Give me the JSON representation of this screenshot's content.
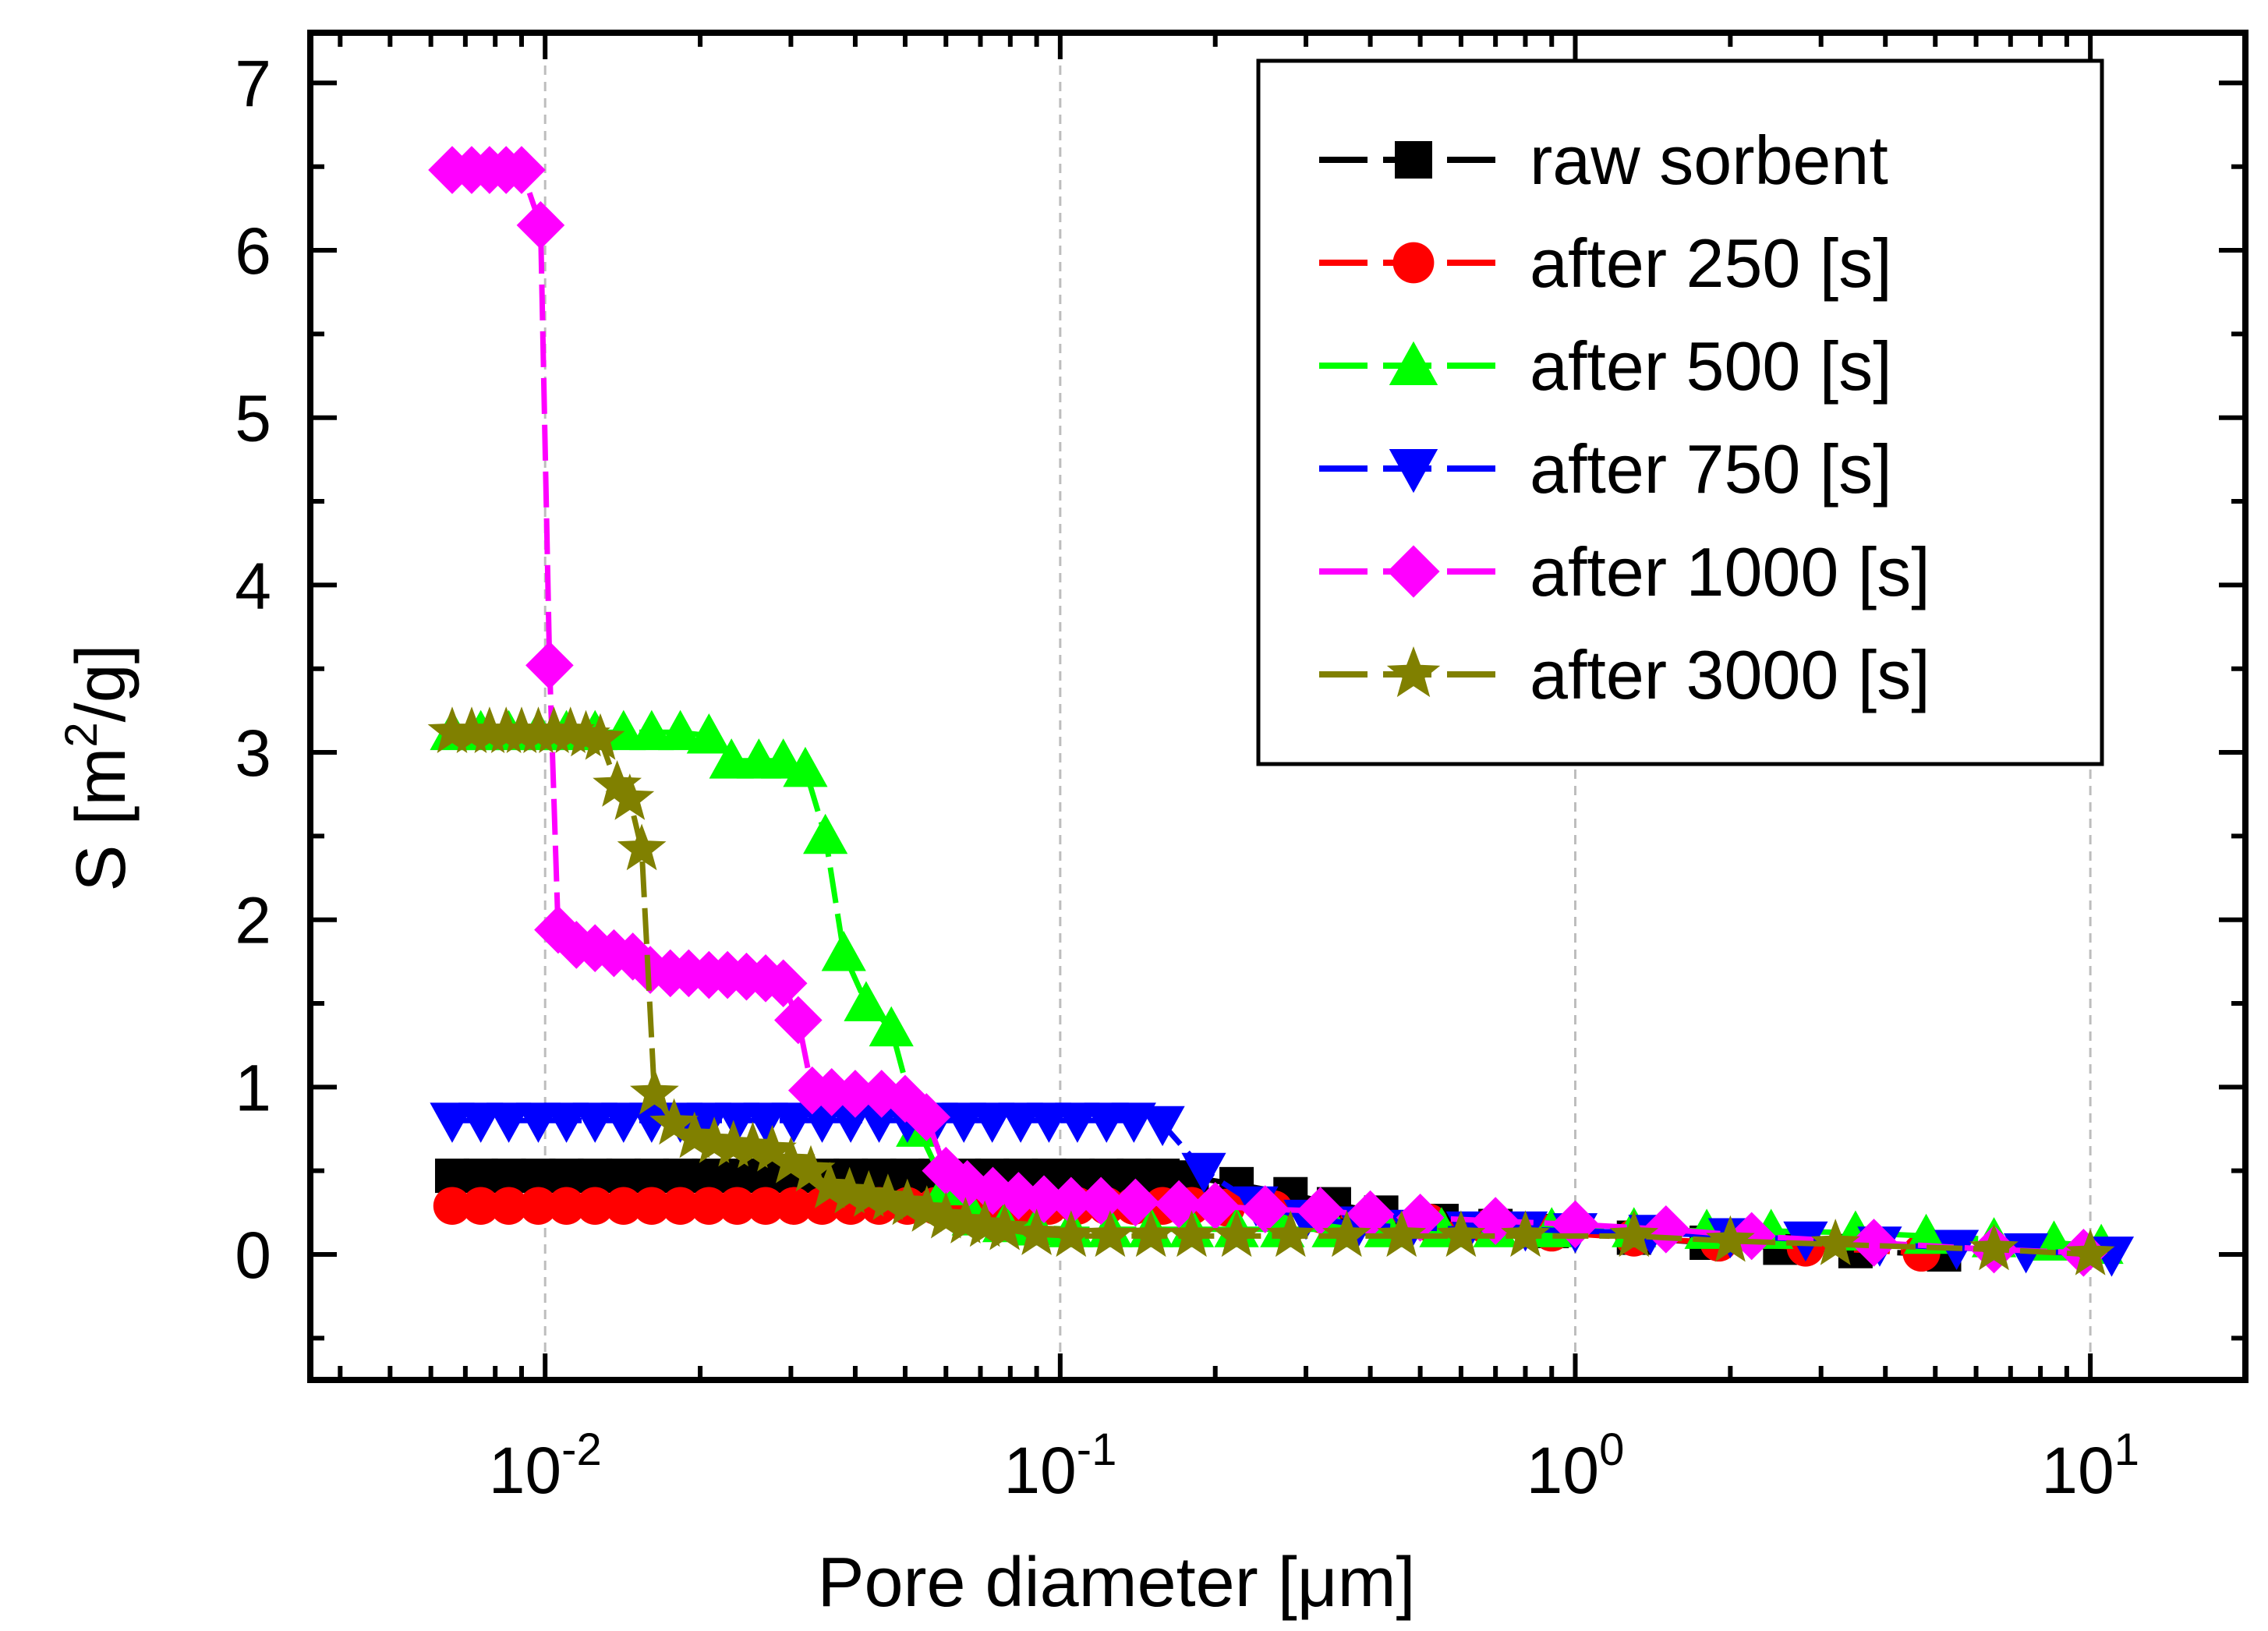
{
  "chart_data": {
    "type": "scatter",
    "title": "",
    "xlabel": "Pore diameter [μm]",
    "ylabel_main": "S [m",
    "ylabel_sup": "2",
    "ylabel_tail": "/g]",
    "x_scale": "log",
    "xlim": [
      0.0035,
      20
    ],
    "ylim": [
      -0.75,
      7.3
    ],
    "x_ticks": [
      {
        "value": 0.01,
        "base": "10",
        "exp": "-2"
      },
      {
        "value": 0.1,
        "base": "10",
        "exp": "-1"
      },
      {
        "value": 1,
        "base": "10",
        "exp": "0"
      },
      {
        "value": 10,
        "base": "10",
        "exp": "1"
      }
    ],
    "y_ticks": [
      {
        "value": 0,
        "label": "0"
      },
      {
        "value": 1,
        "label": "1"
      },
      {
        "value": 2,
        "label": "2"
      },
      {
        "value": 3,
        "label": "3"
      },
      {
        "value": 4,
        "label": "4"
      },
      {
        "value": 5,
        "label": "5"
      },
      {
        "value": 6,
        "label": "6"
      },
      {
        "value": 7,
        "label": "7"
      }
    ],
    "grid": "vertical dashed at x decades",
    "legend_position": "top-right",
    "series": [
      {
        "name": "raw sorbent",
        "color": "#000000",
        "marker": "square",
        "x": [
          0.0066,
          0.0075,
          0.0085,
          0.0097,
          0.011,
          0.0125,
          0.0142,
          0.0161,
          0.0183,
          0.0208,
          0.0236,
          0.0268,
          0.0304,
          0.0345,
          0.0392,
          0.0445,
          0.0505,
          0.0573,
          0.065,
          0.0738,
          0.0838,
          0.0951,
          0.108,
          0.123,
          0.139,
          0.158,
          0.18,
          0.22,
          0.28,
          0.34,
          0.42,
          0.55,
          0.7,
          0.9,
          1.3,
          1.8,
          2.5,
          3.5,
          5.2
        ],
        "y": [
          0.47,
          0.47,
          0.47,
          0.47,
          0.47,
          0.47,
          0.47,
          0.47,
          0.47,
          0.47,
          0.47,
          0.47,
          0.47,
          0.47,
          0.47,
          0.47,
          0.47,
          0.47,
          0.47,
          0.47,
          0.47,
          0.47,
          0.47,
          0.47,
          0.47,
          0.47,
          0.46,
          0.42,
          0.36,
          0.3,
          0.25,
          0.2,
          0.17,
          0.14,
          0.1,
          0.07,
          0.04,
          0.02,
          0.0
        ]
      },
      {
        "name": "after 250 [s]",
        "color": "#ff0000",
        "marker": "circle",
        "x": [
          0.0066,
          0.0075,
          0.0085,
          0.0097,
          0.011,
          0.0125,
          0.0142,
          0.0161,
          0.0183,
          0.0208,
          0.0236,
          0.0268,
          0.0304,
          0.0345,
          0.0392,
          0.0445,
          0.0505,
          0.0573,
          0.065,
          0.0738,
          0.0838,
          0.0951,
          0.108,
          0.123,
          0.139,
          0.158,
          0.18,
          0.21,
          0.26,
          0.32,
          0.4,
          0.52,
          0.68,
          0.9,
          1.3,
          1.9,
          2.8,
          4.7
        ],
        "y": [
          0.29,
          0.29,
          0.29,
          0.29,
          0.29,
          0.29,
          0.29,
          0.29,
          0.29,
          0.29,
          0.29,
          0.29,
          0.29,
          0.29,
          0.29,
          0.29,
          0.29,
          0.29,
          0.29,
          0.29,
          0.29,
          0.29,
          0.29,
          0.29,
          0.29,
          0.29,
          0.29,
          0.28,
          0.27,
          0.24,
          0.22,
          0.19,
          0.16,
          0.13,
          0.1,
          0.07,
          0.04,
          0.01
        ]
      },
      {
        "name": "after 500 [s]",
        "color": "#00ff00",
        "marker": "triangle-up",
        "x": [
          0.0066,
          0.0075,
          0.0085,
          0.0097,
          0.011,
          0.0125,
          0.0142,
          0.0161,
          0.0183,
          0.0208,
          0.023,
          0.026,
          0.029,
          0.032,
          0.035,
          0.038,
          0.042,
          0.047,
          0.053,
          0.06,
          0.068,
          0.078,
          0.09,
          0.105,
          0.125,
          0.15,
          0.18,
          0.22,
          0.27,
          0.34,
          0.43,
          0.55,
          0.7,
          0.9,
          1.3,
          1.8,
          2.4,
          3.5,
          4.8,
          6.5,
          8.5,
          10.5
        ],
        "y": [
          3.12,
          3.12,
          3.12,
          3.12,
          3.12,
          3.12,
          3.12,
          3.12,
          3.12,
          3.1,
          2.95,
          2.95,
          2.95,
          2.9,
          2.5,
          1.8,
          1.5,
          1.35,
          0.75,
          0.4,
          0.22,
          0.18,
          0.16,
          0.15,
          0.15,
          0.15,
          0.15,
          0.15,
          0.15,
          0.15,
          0.15,
          0.15,
          0.15,
          0.15,
          0.15,
          0.14,
          0.14,
          0.13,
          0.11,
          0.09,
          0.07,
          0.05
        ]
      },
      {
        "name": "after 750 [s]",
        "color": "#0000ff",
        "marker": "triangle-down",
        "x": [
          0.0066,
          0.0075,
          0.0085,
          0.0097,
          0.011,
          0.0125,
          0.0142,
          0.0161,
          0.0183,
          0.0208,
          0.0236,
          0.0268,
          0.0304,
          0.0345,
          0.0392,
          0.0445,
          0.0505,
          0.0573,
          0.065,
          0.0738,
          0.0838,
          0.0951,
          0.108,
          0.123,
          0.139,
          0.158,
          0.19,
          0.24,
          0.3,
          0.38,
          0.48,
          0.62,
          0.8,
          1.0,
          1.4,
          2.0,
          2.8,
          3.9,
          5.5,
          7.5,
          11
        ],
        "y": [
          0.8,
          0.8,
          0.8,
          0.8,
          0.8,
          0.8,
          0.8,
          0.8,
          0.8,
          0.8,
          0.8,
          0.8,
          0.8,
          0.8,
          0.8,
          0.8,
          0.8,
          0.8,
          0.8,
          0.8,
          0.8,
          0.8,
          0.8,
          0.8,
          0.8,
          0.78,
          0.5,
          0.3,
          0.22,
          0.18,
          0.16,
          0.15,
          0.15,
          0.14,
          0.13,
          0.11,
          0.09,
          0.06,
          0.04,
          0.02,
          0.0
        ]
      },
      {
        "name": "after 1000 [s]",
        "color": "#ff00ff",
        "marker": "diamond",
        "x": [
          0.0066,
          0.0072,
          0.0078,
          0.0084,
          0.009,
          0.0098,
          0.0102,
          0.0106,
          0.0115,
          0.0125,
          0.0136,
          0.0148,
          0.016,
          0.0175,
          0.019,
          0.0208,
          0.0226,
          0.0246,
          0.0268,
          0.029,
          0.031,
          0.033,
          0.036,
          0.04,
          0.045,
          0.05,
          0.055,
          0.06,
          0.066,
          0.074,
          0.083,
          0.093,
          0.105,
          0.12,
          0.14,
          0.17,
          0.2,
          0.25,
          0.32,
          0.4,
          0.5,
          0.7,
          1.0,
          1.5,
          2.2,
          3.8,
          6.5,
          9.7
        ],
        "y": [
          6.48,
          6.48,
          6.48,
          6.48,
          6.48,
          6.15,
          3.52,
          1.94,
          1.85,
          1.83,
          1.8,
          1.78,
          1.7,
          1.68,
          1.68,
          1.67,
          1.67,
          1.66,
          1.65,
          1.62,
          1.4,
          0.98,
          0.97,
          0.96,
          0.96,
          0.93,
          0.82,
          0.5,
          0.42,
          0.38,
          0.35,
          0.33,
          0.32,
          0.32,
          0.31,
          0.3,
          0.29,
          0.27,
          0.26,
          0.24,
          0.22,
          0.2,
          0.18,
          0.15,
          0.11,
          0.07,
          0.03,
          0.01
        ]
      },
      {
        "name": "after 3000 [s]",
        "color": "#808000",
        "marker": "star",
        "x": [
          0.0066,
          0.0072,
          0.0078,
          0.0084,
          0.009,
          0.0097,
          0.0104,
          0.0112,
          0.012,
          0.0128,
          0.0138,
          0.0146,
          0.0154,
          0.0163,
          0.0178,
          0.0195,
          0.0213,
          0.0232,
          0.0253,
          0.0276,
          0.03,
          0.0328,
          0.0357,
          0.039,
          0.0425,
          0.0463,
          0.0505,
          0.0551,
          0.06,
          0.0655,
          0.0714,
          0.078,
          0.09,
          0.105,
          0.125,
          0.15,
          0.18,
          0.22,
          0.28,
          0.36,
          0.46,
          0.6,
          0.8,
          1.3,
          2.0,
          3.2,
          6.5,
          10
        ],
        "y": [
          3.12,
          3.12,
          3.12,
          3.12,
          3.12,
          3.12,
          3.12,
          3.12,
          3.1,
          3.08,
          2.8,
          2.72,
          2.42,
          0.96,
          0.78,
          0.7,
          0.67,
          0.65,
          0.64,
          0.62,
          0.55,
          0.5,
          0.4,
          0.37,
          0.35,
          0.33,
          0.3,
          0.26,
          0.22,
          0.19,
          0.17,
          0.15,
          0.12,
          0.11,
          0.11,
          0.11,
          0.11,
          0.11,
          0.11,
          0.11,
          0.11,
          0.11,
          0.11,
          0.11,
          0.08,
          0.06,
          0.03,
          0.0
        ]
      }
    ]
  }
}
